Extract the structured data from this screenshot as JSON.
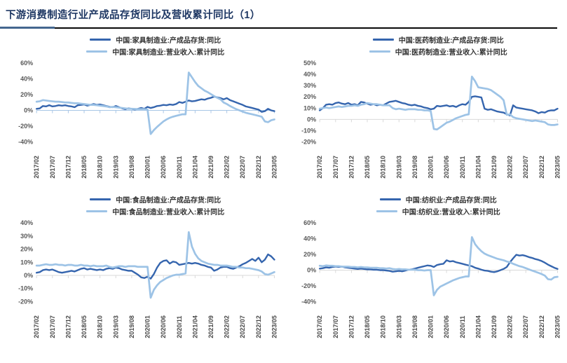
{
  "page": {
    "title": "下游消费制造行业产成品存货同比及营收累计同比（1）"
  },
  "colors": {
    "title_text": "#1F3864",
    "title_rule_left": "#44678F",
    "title_rule_main": "#0A0A0A",
    "dark_series": "#3565AE",
    "light_series": "#9DC3E6",
    "axis_label": "#595959",
    "legend_text": "#333333"
  },
  "x_tick_every": 5,
  "x_labels": [
    "2017/02",
    "2017/07",
    "2017/12",
    "2018/05",
    "2018/10",
    "2019/03",
    "2019/08",
    "2020/01",
    "2020/06",
    "2020/11",
    "2021/04",
    "2021/09",
    "2022/02",
    "2022/07",
    "2022/12",
    "2023/05"
  ],
  "chart_data": [
    {
      "type": "line",
      "industry": "家具制造业",
      "ylim": [
        -40,
        60
      ],
      "ytick_step": 20,
      "y_tick_labels": [
        "60%",
        "40%",
        "20%",
        "0%",
        "-20%",
        "-40%"
      ],
      "axis_color": "#A8C6E6",
      "legend_position": "top",
      "grid": false,
      "series": [
        {
          "name": "中国:家具制造业:产成品存货:同比",
          "color_key": "dark",
          "values": [
            2,
            2.5,
            5.5,
            5,
            6.5,
            5,
            5.5,
            6.5,
            6,
            6.5,
            5.5,
            5,
            4,
            6.5,
            7,
            7.5,
            6,
            7,
            8,
            7,
            7.5,
            6.5,
            5.5,
            4.5,
            4,
            5.5,
            4,
            2.5,
            1.5,
            2.5,
            2,
            1,
            2,
            3,
            2,
            4.5,
            3,
            4,
            5.5,
            6,
            7,
            6.5,
            7.5,
            7,
            8,
            10.5,
            9.5,
            11,
            12.5,
            11.5,
            12,
            13,
            14,
            13.5,
            15,
            16,
            17.5,
            16.5,
            15.5,
            14,
            15.5,
            13,
            11.5,
            10,
            8.5,
            7,
            5,
            4,
            3,
            2,
            1,
            -2,
            -1,
            2,
            0,
            -1
          ]
        },
        {
          "name": "中国:家具制造业:营业收入:累计同比",
          "color_key": "light",
          "values": [
            11,
            11.5,
            13,
            12.5,
            12,
            11.5,
            11,
            11,
            10.5,
            10,
            10,
            9.5,
            9,
            9,
            8.5,
            8,
            7.5,
            7,
            7,
            6.5,
            6,
            5.5,
            5,
            4,
            4.5,
            4,
            3.5,
            3,
            2.5,
            2,
            2,
            1.8,
            1.5,
            1.5,
            1.5,
            1,
            -30,
            -25,
            -21,
            -17.5,
            -14,
            -11.5,
            -9.5,
            -8,
            -7,
            -6,
            -5,
            -5,
            48,
            42,
            36,
            31,
            28,
            25,
            23,
            20.5,
            18,
            16,
            14,
            10,
            8,
            5.5,
            3.5,
            1.5,
            0,
            -1.5,
            -3,
            -4,
            -5,
            -6,
            -7,
            -8,
            -14,
            -15,
            -12.5,
            -11.5
          ]
        }
      ]
    },
    {
      "type": "line",
      "industry": "医药制造业",
      "ylim": [
        -20,
        50
      ],
      "ytick_step": 10,
      "y_tick_labels": [
        "50%",
        "40%",
        "30%",
        "20%",
        "10%",
        "0%",
        "-10%",
        "-20%"
      ],
      "axis_color": "#D9D9D9",
      "legend_position": "top",
      "grid": false,
      "series": [
        {
          "name": "中国:医药制造业:产成品存货:同比",
          "color_key": "dark",
          "values": [
            8,
            10,
            13,
            13.5,
            13,
            14.5,
            15,
            14,
            13.5,
            14.5,
            13,
            13.5,
            12.5,
            15.5,
            15,
            14,
            13,
            13.5,
            12.5,
            13,
            12.5,
            14,
            15.5,
            16,
            16.5,
            15.5,
            14.5,
            14,
            13,
            12.5,
            13,
            12,
            11.5,
            10.5,
            10,
            9,
            9.5,
            12,
            11.5,
            12,
            12.5,
            11.5,
            12,
            11,
            12.5,
            13.5,
            13,
            15.5,
            20,
            20.5,
            20,
            19.5,
            9.5,
            8.5,
            9,
            8,
            7,
            6.5,
            6,
            4.5,
            3.5,
            12.5,
            10.5,
            10,
            9.5,
            9,
            8.5,
            8,
            7,
            5.5,
            6.5,
            6,
            7.5,
            8,
            8,
            9.5
          ]
        },
        {
          "name": "中国:医药制造业:营业收入:累计同比",
          "color_key": "light",
          "values": [
            9.5,
            10,
            10.5,
            10,
            10.5,
            11,
            11.5,
            11,
            11.5,
            12,
            12,
            12.5,
            12,
            13,
            13.5,
            14.5,
            14,
            13.5,
            13.5,
            13,
            12.5,
            12.5,
            12.5,
            10,
            9,
            9.5,
            9,
            8.5,
            9,
            9,
            9,
            8.5,
            8.5,
            8,
            8,
            7.5,
            -8.5,
            -9,
            -7,
            -5,
            -3,
            -2,
            -0.5,
            1,
            2,
            3,
            4,
            4.5,
            38,
            34,
            28.5,
            28,
            27.5,
            27,
            26,
            24,
            22,
            20,
            17,
            4,
            4.5,
            2,
            1,
            0.5,
            0,
            -0.5,
            -1,
            -1.5,
            -1,
            -1.5,
            -2,
            -2.5,
            -4.5,
            -5,
            -5,
            -4.5
          ]
        }
      ]
    },
    {
      "type": "line",
      "industry": "食品制造业",
      "ylim": [
        -20,
        40
      ],
      "ytick_step": 10,
      "y_tick_labels": [
        "40%",
        "30%",
        "20%",
        "10%",
        "0%",
        "-10%",
        "-20%"
      ],
      "axis_color": "#D9D9D9",
      "legend_position": "top",
      "grid": false,
      "series": [
        {
          "name": "中国:食品制造业:产成品存货:同比",
          "color_key": "dark",
          "values": [
            2,
            2.5,
            4,
            4.5,
            4,
            4.5,
            3.5,
            2.5,
            2,
            2.5,
            3,
            3.5,
            3,
            4,
            5,
            5.5,
            4.5,
            5,
            4.5,
            4,
            4.5,
            4,
            5,
            5.5,
            5,
            6,
            5.5,
            4.5,
            4,
            3.5,
            3.5,
            2,
            0.5,
            -1.5,
            -2,
            -1,
            -2.5,
            1,
            6,
            9.5,
            11,
            11.5,
            9,
            10.5,
            10,
            8,
            8.5,
            9,
            9.5,
            9,
            9.5,
            9,
            8,
            7.5,
            6.5,
            6,
            3.5,
            4.5,
            6,
            6.5,
            6.5,
            5.5,
            5,
            6,
            7,
            8.5,
            9.5,
            11,
            12.5,
            11,
            13.5,
            10,
            12,
            16,
            14.5,
            12
          ]
        },
        {
          "name": "中国:食品制造业:营业收入:累计同比",
          "color_key": "light",
          "values": [
            7.5,
            7.5,
            8,
            8.5,
            8,
            8,
            8.5,
            8,
            8,
            7.5,
            8,
            8,
            7.5,
            7.5,
            8,
            7.5,
            7.5,
            7,
            7.5,
            7,
            7,
            7,
            7.5,
            6.5,
            6,
            6.5,
            7,
            7,
            6.5,
            7,
            7,
            7,
            6.5,
            6.5,
            6.5,
            6.5,
            -17,
            -11,
            -7.5,
            -5,
            -3.5,
            -2,
            -1,
            0,
            0.5,
            0.5,
            1,
            1.5,
            33,
            22,
            16.5,
            13,
            11,
            10,
            9,
            8.5,
            8,
            8,
            7.5,
            7.5,
            7.5,
            7,
            6.5,
            6.5,
            6,
            6,
            5.5,
            5.5,
            5,
            4.5,
            4,
            3,
            1,
            0.5,
            1.5,
            2.5
          ]
        }
      ]
    },
    {
      "type": "line",
      "industry": "纺织业",
      "ylim": [
        -40,
        60
      ],
      "ytick_step": 20,
      "y_tick_labels": [
        "60%",
        "40%",
        "20%",
        "0%",
        "-20%",
        "-40%"
      ],
      "axis_color": "#D9D9D9",
      "legend_position": "top",
      "grid": false,
      "series": [
        {
          "name": "中国:纺织业:产成品存货:同比",
          "color_key": "dark",
          "values": [
            2,
            2.5,
            3.5,
            3,
            4,
            4.5,
            4,
            4.5,
            3.5,
            3,
            2.5,
            2,
            1.5,
            2,
            1.5,
            1,
            1,
            0.5,
            0.5,
            0,
            0,
            -0.5,
            -1,
            -2,
            -1.5,
            -1,
            -1.5,
            -0.5,
            0.5,
            1,
            2,
            3,
            4,
            5,
            6,
            5.5,
            4,
            6.5,
            7.5,
            8,
            12.5,
            11,
            11.5,
            10,
            9,
            8,
            7,
            6,
            5,
            3,
            2,
            0.5,
            -0.5,
            -1,
            -2,
            -2.5,
            -1.5,
            0,
            1.5,
            4,
            10,
            15,
            19.5,
            18.5,
            19,
            18,
            16.5,
            15.5,
            14,
            13,
            11.5,
            9.5,
            7,
            5,
            3,
            1.5
          ]
        },
        {
          "name": "中国:纺织业:营业收入:累计同比",
          "color_key": "light",
          "values": [
            5.5,
            5,
            6,
            5.5,
            5.5,
            5,
            5,
            4.5,
            4.5,
            4.5,
            4,
            4,
            3.5,
            4,
            3.5,
            3.5,
            3,
            3,
            3,
            2.5,
            2.5,
            2,
            2.5,
            1.5,
            1,
            1.5,
            1,
            1,
            0.5,
            0.5,
            0.5,
            0,
            0,
            -0.5,
            0,
            0,
            -32,
            -25,
            -21,
            -19,
            -17,
            -15,
            -13,
            -11.5,
            -10,
            -9,
            -8,
            -8,
            42,
            33,
            28,
            24,
            21,
            19,
            17.5,
            16,
            14.5,
            13.5,
            12.5,
            11,
            10,
            8,
            6.5,
            5,
            4,
            2.5,
            1,
            -0.5,
            -2,
            -3.5,
            -5,
            -7,
            -11.5,
            -12,
            -9,
            -8.5
          ]
        }
      ]
    }
  ]
}
